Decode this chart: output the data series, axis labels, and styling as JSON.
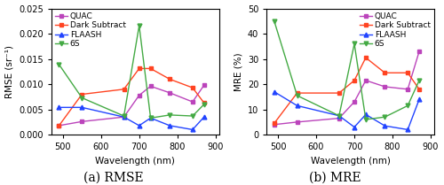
{
  "wavelengths": [
    490,
    550,
    660,
    700,
    730,
    780,
    840,
    870
  ],
  "rmse": {
    "QUAC": [
      0.0018,
      0.0026,
      0.0035,
      0.0078,
      0.0096,
      0.0083,
      0.0065,
      0.0098
    ],
    "Dark Subtract": [
      0.0018,
      0.008,
      0.009,
      0.0131,
      0.0131,
      0.011,
      0.0093,
      0.0063
    ],
    "FLAASH": [
      0.0054,
      0.0054,
      0.0035,
      0.0018,
      0.0033,
      0.0018,
      0.001,
      0.0035
    ],
    "6S": [
      0.0139,
      0.0073,
      0.0037,
      0.0216,
      0.0033,
      0.0039,
      0.0037,
      0.006
    ]
  },
  "mre": {
    "QUAC": [
      4.0,
      5.0,
      6.5,
      13.0,
      21.5,
      19.0,
      18.0,
      33.0
    ],
    "Dark Subtract": [
      4.5,
      16.5,
      16.5,
      21.5,
      30.5,
      24.5,
      24.5,
      18.0
    ],
    "FLAASH": [
      17.0,
      11.5,
      7.5,
      3.0,
      8.0,
      3.5,
      2.0,
      14.0
    ],
    "6S": [
      45.0,
      15.5,
      7.5,
      36.0,
      6.0,
      7.0,
      11.5,
      21.5
    ]
  },
  "colors": {
    "QUAC": "#bb44bb",
    "Dark Subtract": "#ff4422",
    "FLAASH": "#2244ff",
    "6S": "#44aa44"
  },
  "markers": {
    "QUAC": "s",
    "Dark Subtract": "s",
    "FLAASH": "^",
    "6S": "v"
  },
  "rmse_ylim": [
    0,
    0.025
  ],
  "mre_ylim": [
    0,
    50
  ],
  "xlim": [
    470,
    910
  ],
  "xlabel": "Wavelength (nm)",
  "rmse_ylabel": "RMSE (sr⁻¹)",
  "mre_ylabel": "MRE (%)",
  "subtitle_a": "(a) RMSE",
  "subtitle_b": "(b) MRE",
  "subtitle_fontsize": 10,
  "legend_fontsize": 6.5,
  "tick_fontsize": 7,
  "label_fontsize": 7.5,
  "background_color": "#ffffff",
  "marker_size": 3.5,
  "line_width": 1.0
}
